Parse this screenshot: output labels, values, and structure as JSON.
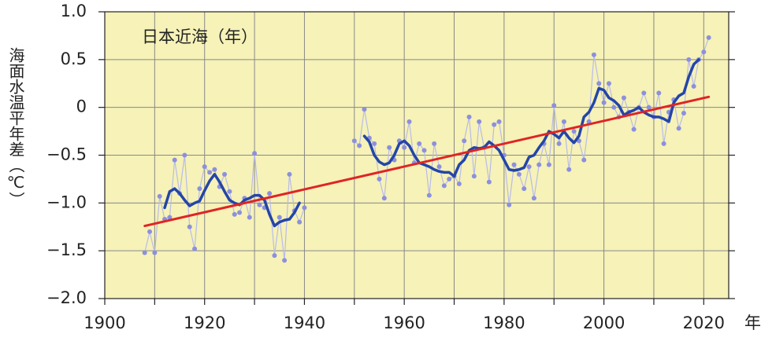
{
  "chart_data": {
    "type": "line",
    "title": "日本近海（年）",
    "y_label": "海面水温平年差（℃）",
    "x_label": "年",
    "xlim": [
      1900,
      2025
    ],
    "xticks": [
      1900,
      1920,
      1940,
      1960,
      1980,
      2000,
      2020
    ],
    "xgrid": [
      1900,
      1910,
      1920,
      1930,
      1940,
      1950,
      1960,
      1970,
      1980,
      1990,
      2000,
      2010,
      2020
    ],
    "ylim": [
      -2.0,
      1.0
    ],
    "yticks": [
      {
        "value": -2.0,
        "label": "−2.0"
      },
      {
        "value": -1.5,
        "label": "−1.5"
      },
      {
        "value": -1.0,
        "label": "−1.0"
      },
      {
        "value": -0.5,
        "label": "−0.5"
      },
      0,
      {
        "value": 0.5,
        "label": "0.5"
      },
      {
        "value": 1.0,
        "label": "1.0"
      }
    ],
    "grid": true,
    "background": "#f6f2b8",
    "series": [
      {
        "color": "#8c90dc",
        "line_color": "#b8bbea",
        "markers": true,
        "x": [
          1908,
          1909,
          1910,
          1911,
          1912,
          1913,
          1914,
          1915,
          1916,
          1917,
          1918,
          1919,
          1920,
          1921,
          1922,
          1923,
          1924,
          1925,
          1926,
          1927,
          1928,
          1929,
          1930,
          1931,
          1932,
          1933,
          1934,
          1935,
          1936,
          1937,
          1938,
          1939,
          1940,
          1941,
          1942,
          1943,
          1944,
          1945,
          1946,
          1947,
          1948,
          1949,
          1950,
          1951,
          1952,
          1953,
          1954,
          1955,
          1956,
          1957,
          1958,
          1959,
          1960,
          1961,
          1962,
          1963,
          1964,
          1965,
          1966,
          1967,
          1968,
          1969,
          1970,
          1971,
          1972,
          1973,
          1974,
          1975,
          1976,
          1977,
          1978,
          1979,
          1980,
          1981,
          1982,
          1983,
          1984,
          1985,
          1986,
          1987,
          1988,
          1989,
          1990,
          1991,
          1992,
          1993,
          1994,
          1995,
          1996,
          1997,
          1998,
          1999,
          2000,
          2001,
          2002,
          2003,
          2004,
          2005,
          2006,
          2007,
          2008,
          2009,
          2010,
          2011,
          2012,
          2013,
          2014,
          2015,
          2016,
          2017,
          2018,
          2019,
          2020,
          2021
        ],
        "values": [
          -1.52,
          -1.3,
          -1.52,
          -0.93,
          -1.17,
          -1.15,
          -0.55,
          -0.9,
          -0.5,
          -1.25,
          -1.48,
          -0.85,
          -0.62,
          -0.68,
          -0.65,
          -0.83,
          -0.7,
          -0.88,
          -1.12,
          -1.1,
          -0.95,
          -1.15,
          -0.48,
          -1.02,
          -1.05,
          -0.9,
          -1.55,
          -1.15,
          -1.6,
          -0.7,
          -1.08,
          -1.2,
          -1.05,
          null,
          null,
          null,
          null,
          null,
          null,
          null,
          null,
          null,
          -0.35,
          -0.4,
          -0.02,
          -0.32,
          -0.38,
          -0.75,
          -0.95,
          -0.42,
          -0.55,
          -0.35,
          -0.42,
          -0.15,
          -0.58,
          -0.38,
          -0.45,
          -0.92,
          -0.38,
          -0.62,
          -0.82,
          -0.75,
          -0.72,
          -0.8,
          -0.35,
          -0.1,
          -0.72,
          -0.15,
          -0.42,
          -0.78,
          -0.18,
          -0.15,
          -0.5,
          -1.02,
          -0.6,
          -0.7,
          -0.85,
          -0.62,
          -0.95,
          -0.6,
          -0.38,
          -0.6,
          0.02,
          -0.38,
          -0.15,
          -0.65,
          -0.25,
          -0.35,
          -0.55,
          -0.15,
          0.55,
          0.25,
          0.05,
          0.25,
          0.0,
          -0.1,
          0.1,
          -0.05,
          -0.23,
          0.0,
          0.15,
          0.0,
          -0.1,
          0.15,
          -0.38,
          -0.05,
          0.08,
          -0.22,
          -0.06,
          0.5,
          0.22,
          0.5,
          0.58,
          0.73
        ]
      },
      {
        "color": "#2445a8",
        "width": 3.5,
        "x": [
          1912,
          1913,
          1914,
          1915,
          1916,
          1917,
          1918,
          1919,
          1920,
          1921,
          1922,
          1923,
          1924,
          1925,
          1926,
          1927,
          1928,
          1929,
          1930,
          1931,
          1932,
          1933,
          1934,
          1935,
          1936,
          1937,
          1938,
          1939,
          1940,
          1941,
          1942,
          1943,
          1944,
          1945,
          1946,
          1947,
          1948,
          1949,
          1950,
          1951,
          1952,
          1953,
          1954,
          1955,
          1956,
          1957,
          1958,
          1959,
          1960,
          1961,
          1962,
          1963,
          1964,
          1965,
          1966,
          1967,
          1968,
          1969,
          1970,
          1971,
          1972,
          1973,
          1974,
          1975,
          1976,
          1977,
          1978,
          1979,
          1980,
          1981,
          1982,
          1983,
          1984,
          1985,
          1986,
          1987,
          1988,
          1989,
          1990,
          1991,
          1992,
          1993,
          1994,
          1995,
          1996,
          1997,
          1998,
          1999,
          2000,
          2001,
          2002,
          2003,
          2004,
          2005,
          2006,
          2007,
          2008,
          2009,
          2010,
          2011,
          2012,
          2013,
          2014,
          2015,
          2016,
          2017,
          2018,
          2019
        ],
        "values": [
          -1.05,
          -0.88,
          -0.85,
          -0.9,
          -0.97,
          -1.03,
          -1.0,
          -0.98,
          -0.87,
          -0.77,
          -0.7,
          -0.78,
          -0.88,
          -0.97,
          -1.0,
          -1.02,
          -0.97,
          -0.95,
          -0.92,
          -0.92,
          -0.97,
          -1.12,
          -1.24,
          -1.2,
          -1.18,
          -1.17,
          -1.1,
          -1.0,
          null,
          null,
          null,
          null,
          null,
          null,
          null,
          null,
          null,
          null,
          null,
          null,
          -0.3,
          -0.36,
          -0.5,
          -0.57,
          -0.6,
          -0.58,
          -0.5,
          -0.38,
          -0.35,
          -0.4,
          -0.5,
          -0.58,
          -0.6,
          -0.62,
          -0.65,
          -0.67,
          -0.68,
          -0.68,
          -0.72,
          -0.6,
          -0.55,
          -0.45,
          -0.42,
          -0.43,
          -0.42,
          -0.36,
          -0.4,
          -0.45,
          -0.55,
          -0.65,
          -0.66,
          -0.65,
          -0.63,
          -0.52,
          -0.5,
          -0.42,
          -0.35,
          -0.25,
          -0.28,
          -0.32,
          -0.25,
          -0.32,
          -0.37,
          -0.3,
          -0.1,
          -0.05,
          0.05,
          0.2,
          0.18,
          0.1,
          0.07,
          0.02,
          -0.08,
          -0.05,
          -0.03,
          0.0,
          -0.05,
          -0.08,
          -0.1,
          -0.1,
          -0.12,
          -0.15,
          0.05,
          0.12,
          0.15,
          0.32,
          0.45,
          0.5
        ]
      },
      {
        "color": "#e02424",
        "width": 3,
        "x": [
          1908,
          2021
        ],
        "values": [
          -1.24,
          0.11
        ]
      }
    ]
  }
}
